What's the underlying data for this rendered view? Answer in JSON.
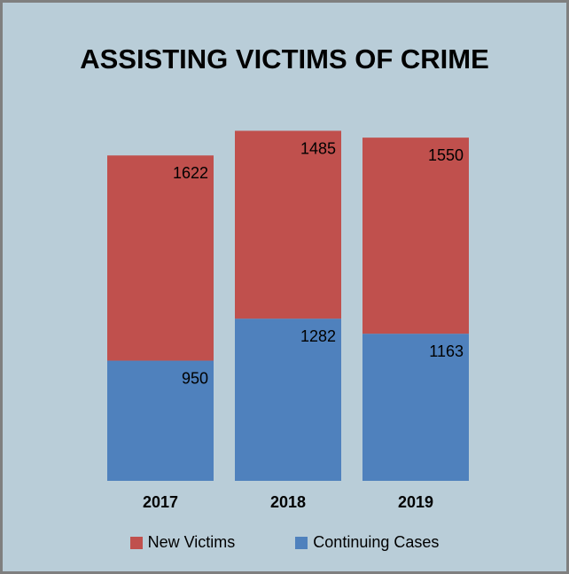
{
  "chart_data": {
    "type": "bar",
    "stacked": true,
    "title": "ASSISTING VICTIMS OF CRIME",
    "categories": [
      "2017",
      "2018",
      "2019"
    ],
    "series": [
      {
        "name": "Continuing Cases",
        "values": [
          950,
          1282,
          1163
        ],
        "color": "#4f81bd"
      },
      {
        "name": "New Victims",
        "values": [
          1622,
          1485,
          1550
        ],
        "color": "#c0504d"
      }
    ],
    "legend": [
      "New Victims",
      "Continuing Cases"
    ],
    "legend_position": "bottom",
    "grid": false
  }
}
